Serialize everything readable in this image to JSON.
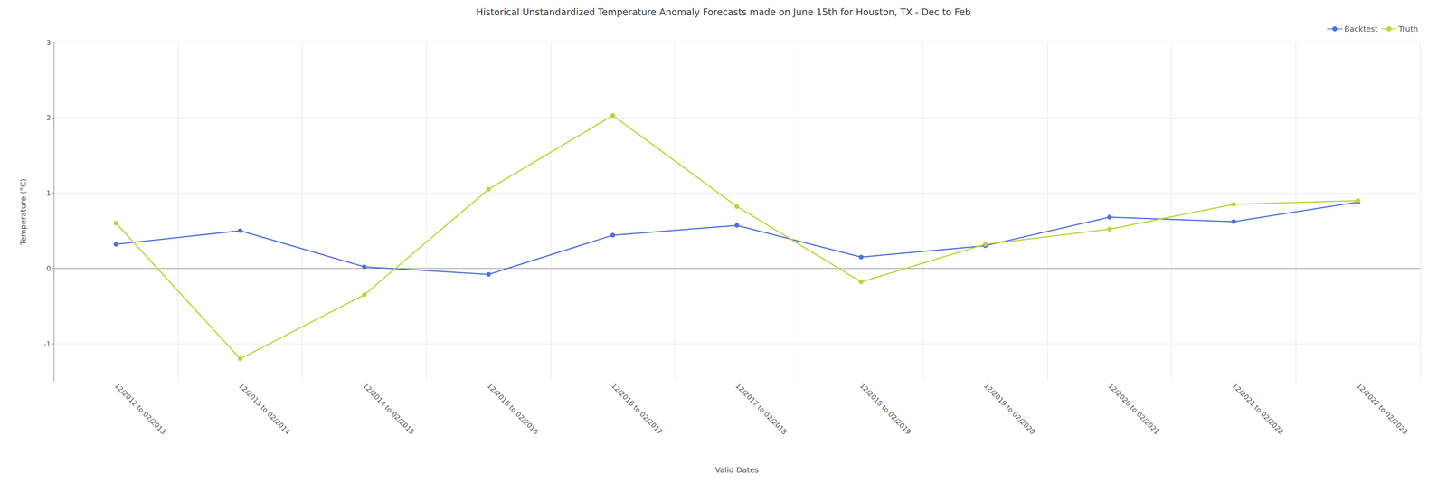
{
  "chart_data": {
    "type": "line",
    "title": "Historical Unstandardized Temperature Anomaly Forecasts made on June 15th for Houston, TX - Dec to Feb",
    "xlabel": "Valid Dates",
    "ylabel": "Temperature (°C)",
    "categories": [
      "12/2012 to 02/2013",
      "12/2013 to 02/2014",
      "12/2014 to 02/2015",
      "12/2015 to 02/2016",
      "12/2016 to 02/2017",
      "12/2017 to 02/2018",
      "12/2018 to 02/2019",
      "12/2019 to 02/2020",
      "12/2020 to 02/2021",
      "12/2021 to 02/2022",
      "12/2022 to 02/2023"
    ],
    "series": [
      {
        "name": "Backtest",
        "values": [
          0.32,
          0.5,
          0.02,
          -0.08,
          0.44,
          0.57,
          0.15,
          0.3,
          0.68,
          0.62,
          0.88
        ]
      },
      {
        "name": "Truth",
        "values": [
          0.6,
          -1.2,
          -0.35,
          1.05,
          2.03,
          0.82,
          -0.18,
          0.32,
          0.52,
          0.85,
          0.9
        ]
      }
    ],
    "ylim": [
      -1.5,
      3.0
    ],
    "yticks": [
      -1,
      0,
      1,
      2,
      3
    ],
    "grid": true,
    "legend": "upper right",
    "marker": "circle"
  }
}
